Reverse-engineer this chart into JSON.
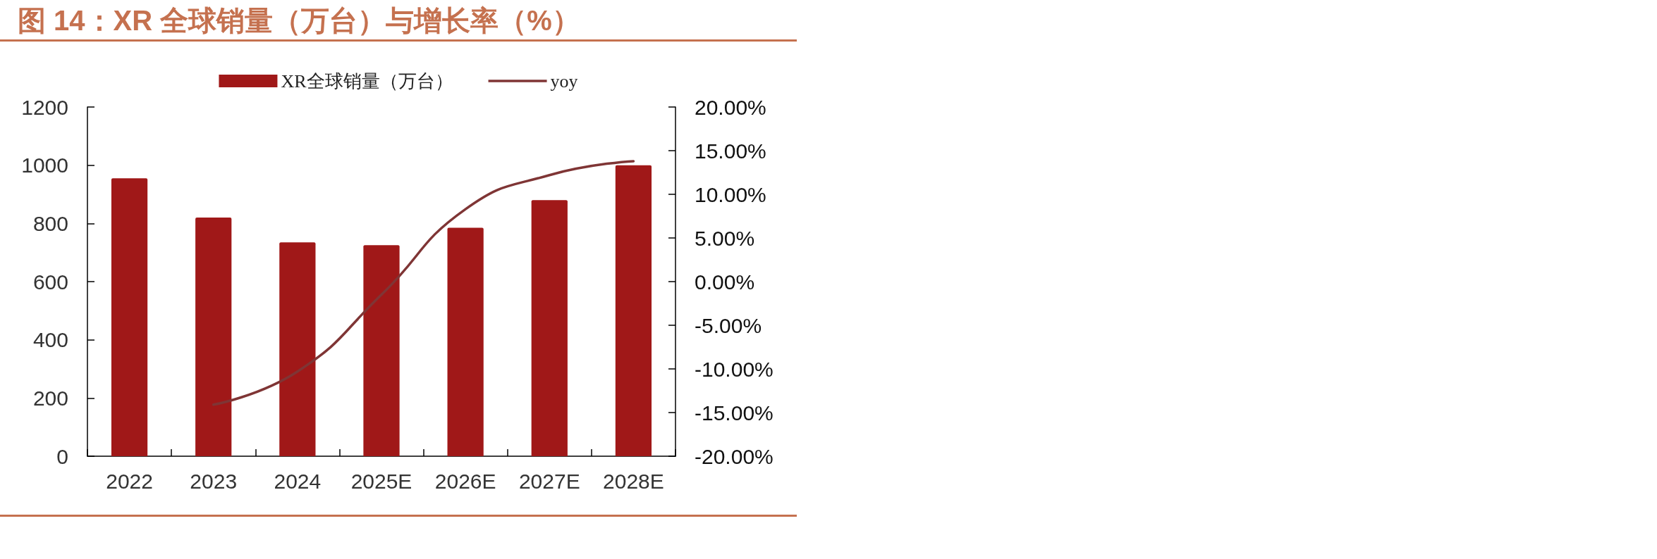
{
  "chart_data": {
    "type": "bar",
    "title": "图 14：XR 全球销量（万台）与增长率（%）",
    "categories": [
      "2022",
      "2023",
      "2024",
      "2025E",
      "2026E",
      "2027E",
      "2028E"
    ],
    "series": [
      {
        "name": "XR全球销量（万台）",
        "color": "#a01818",
        "values": [
          955,
          820,
          735,
          725,
          785,
          880,
          1000
        ]
      },
      {
        "name": "yoy",
        "type": "line",
        "axis": "y2",
        "color": "#7f3535",
        "values": [
          null,
          -14.1,
          -10.3,
          -1.5,
          8.3,
          12.2,
          13.8
        ]
      }
    ],
    "ylim": [
      0,
      1200
    ],
    "yticks": [
      0,
      200,
      400,
      600,
      800,
      1000,
      1200
    ],
    "y2lim": [
      -20,
      20
    ],
    "y2ticks": [
      {
        "value": -20,
        "label": "-20.00%"
      },
      {
        "value": -15,
        "label": "-15.00%"
      },
      {
        "value": -10,
        "label": "-10.00%"
      },
      {
        "value": -5,
        "label": "-5.00%"
      },
      {
        "value": 0,
        "label": "0.00%"
      },
      {
        "value": 5,
        "label": "5.00%"
      },
      {
        "value": 10,
        "label": "10.00%"
      },
      {
        "value": 15,
        "label": "15.00%"
      },
      {
        "value": 20,
        "label": "20.00%"
      }
    ],
    "legend": "top",
    "marker": "none"
  }
}
